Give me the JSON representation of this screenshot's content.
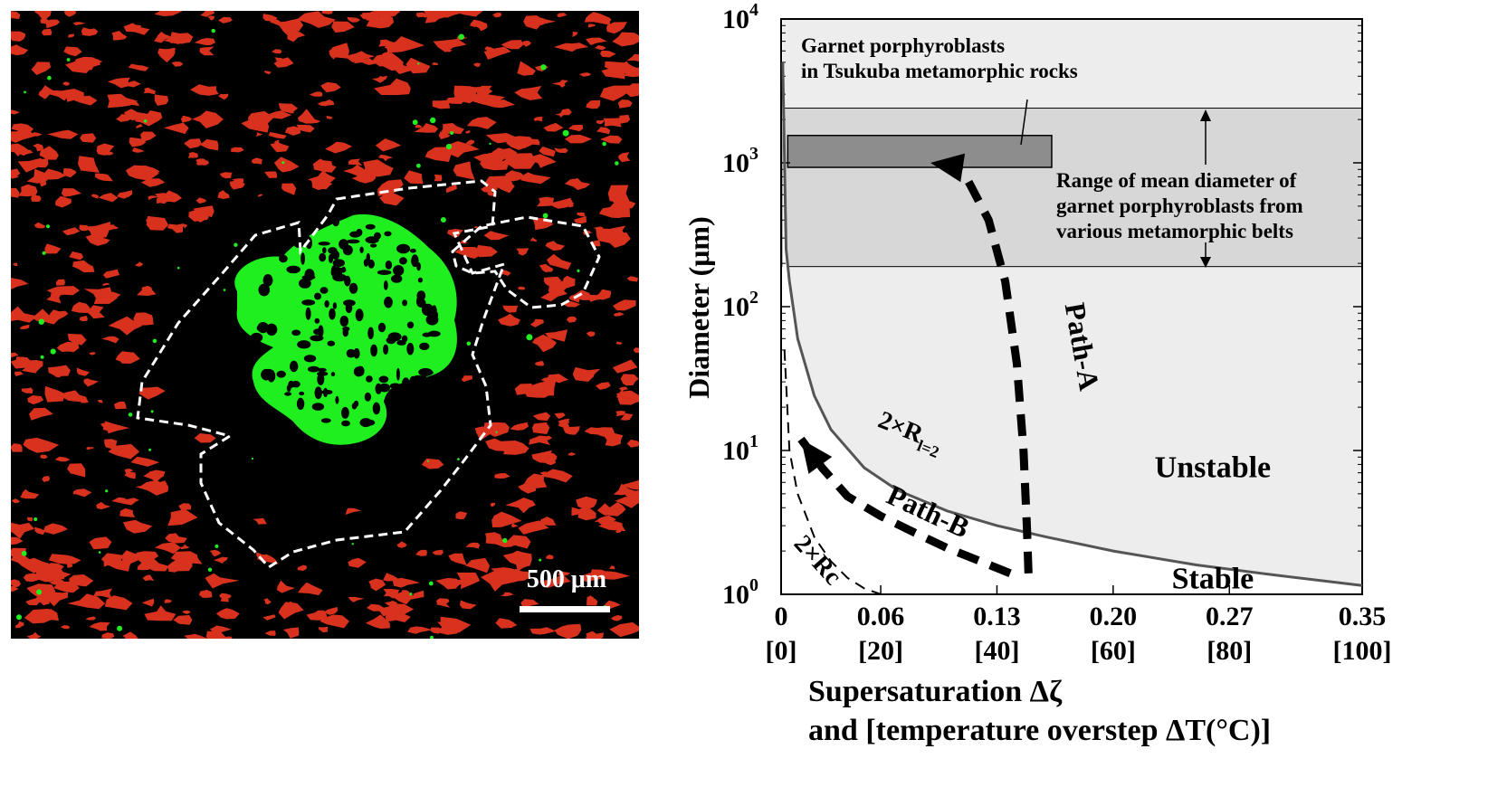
{
  "colors": {
    "background": "#000000",
    "garnet": "#1fee1f",
    "red_phase": "#d8321e",
    "outline": "#ffffff",
    "chart_light": "#ededed",
    "chart_band": "#d7d7d7",
    "chart_box": "#8d8d8d"
  },
  "micrograph": {
    "scale_bar_label": "500 μm"
  },
  "chart_data": {
    "type": "line",
    "ylabel": "Diameter (μm)",
    "yscale": "log",
    "ylim": [
      1,
      10000
    ],
    "xlim": [
      0,
      0.35
    ],
    "xticks": [
      {
        "value": 0,
        "label": "0",
        "sub": "[0]"
      },
      {
        "value": 0.06,
        "label": "0.06",
        "sub": "[20]"
      },
      {
        "value": 0.13,
        "label": "0.13",
        "sub": "[40]"
      },
      {
        "value": 0.2,
        "label": "0.20",
        "sub": "[60]"
      },
      {
        "value": 0.27,
        "label": "0.27",
        "sub": "[80]"
      },
      {
        "value": 0.35,
        "label": "0.35",
        "sub": "[100]"
      }
    ],
    "yticks": [
      {
        "value": 1,
        "base": "10",
        "exp": "0"
      },
      {
        "value": 10,
        "base": "10",
        "exp": "1"
      },
      {
        "value": 100,
        "base": "10",
        "exp": "2"
      },
      {
        "value": 1000,
        "base": "10",
        "exp": "3"
      },
      {
        "value": 10000,
        "base": "10",
        "exp": "4"
      }
    ],
    "xlabel_line1": "Supersaturation Δζ",
    "xlabel_line2": "and [temperature overstep ΔT(°C)]",
    "series": [
      {
        "name": "2×R_l=2",
        "label_main": "2×R",
        "label_sub": "l=2",
        "x": [
          0.001,
          0.003,
          0.005,
          0.01,
          0.02,
          0.03,
          0.05,
          0.07,
          0.1,
          0.13,
          0.16,
          0.2,
          0.25,
          0.3,
          0.35
        ],
        "y": [
          5000,
          250,
          150,
          60,
          24,
          14,
          7.6,
          5.3,
          3.8,
          3.0,
          2.5,
          2.0,
          1.6,
          1.35,
          1.15
        ]
      },
      {
        "name": "2×Rc",
        "label_main": "2×Rc",
        "x": [
          0.002,
          0.005,
          0.01,
          0.02,
          0.03,
          0.04,
          0.05,
          0.06
        ],
        "y": [
          50,
          10,
          5.0,
          2.5,
          1.7,
          1.3,
          1.1,
          1.0
        ]
      }
    ],
    "paths": [
      {
        "name": "Path-A",
        "x": [
          0.149,
          0.148,
          0.146,
          0.142,
          0.135,
          0.125,
          0.114,
          0.11,
          0.1,
          0.09
        ],
        "y": [
          1.4,
          3,
          10,
          40,
          150,
          400,
          700,
          850,
          960,
          1000
        ]
      },
      {
        "name": "Path-B",
        "x": [
          0.138,
          0.12,
          0.1,
          0.08,
          0.06,
          0.04,
          0.025,
          0.012
        ],
        "y": [
          1.4,
          1.7,
          2.1,
          2.7,
          3.5,
          4.8,
          7.5,
          12
        ]
      }
    ],
    "regions": [
      {
        "name": "Unstable",
        "x": 0.26,
        "y": 6.5
      },
      {
        "name": "Stable",
        "x": 0.26,
        "y": 1.1
      }
    ],
    "band": {
      "ymin": 190,
      "ymax": 2400,
      "label": [
        "Range of mean diameter of",
        "garnet porphyroblasts from",
        "various metamorphic belts"
      ]
    },
    "box": {
      "xmin": 0.004,
      "xmax": 0.163,
      "ymin": 930,
      "ymax": 1550,
      "label": [
        "Garnet porphyroblasts",
        "in Tsukuba metamorphic rocks"
      ]
    }
  }
}
